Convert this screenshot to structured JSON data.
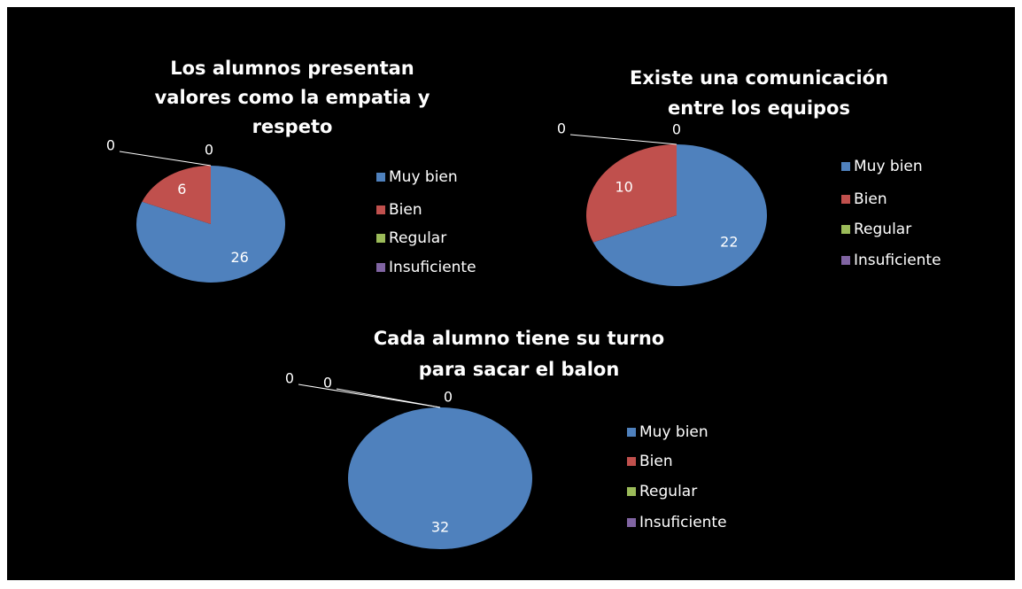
{
  "chart_data": [
    {
      "type": "pie",
      "title": [
        "Los alumnos presentan",
        "valores como la empatia y",
        "respeto"
      ],
      "categories": [
        "Muy bien",
        "Bien",
        "Regular",
        "Insuficiente"
      ],
      "values": [
        26,
        6,
        0,
        0
      ],
      "colors": [
        "#4f81bd",
        "#c0504d",
        "#9bbb59",
        "#8064a2"
      ]
    },
    {
      "type": "pie",
      "title": [
        "Existe una comunicación",
        "entre los equipos"
      ],
      "categories": [
        "Muy bien",
        "Bien",
        "Regular",
        "Insuficiente"
      ],
      "values": [
        22,
        10,
        0,
        0
      ],
      "colors": [
        "#4f81bd",
        "#c0504d",
        "#9bbb59",
        "#8064a2"
      ]
    },
    {
      "type": "pie",
      "title": [
        "Cada alumno tiene su turno",
        "para sacar el balon"
      ],
      "categories": [
        "Muy bien",
        "Bien",
        "Regular",
        "Insuficiente"
      ],
      "values": [
        32,
        0,
        0,
        0
      ],
      "colors": [
        "#4f81bd",
        "#c0504d",
        "#9bbb59",
        "#8064a2"
      ]
    }
  ]
}
